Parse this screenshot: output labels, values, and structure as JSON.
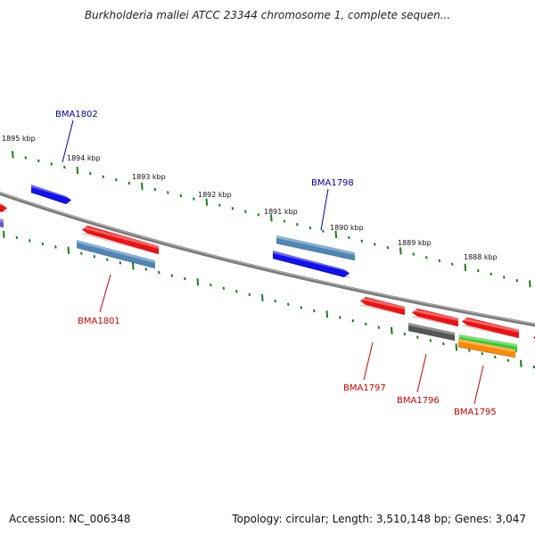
{
  "title": "Burkholderia mallei ATCC 23344 chromosome 1, complete sequen...",
  "footer": {
    "accession": "Accession: NC_006348",
    "summary": "Topology: circular; Length: 3,510,148 bp; Genes: 3,047"
  },
  "colors": {
    "backbone": "#7a7a7a",
    "tick": "#1e7a1e",
    "label_forward": "#0000aa",
    "label_reverse": "#cc0000",
    "red": "#ee1111",
    "blue": "#1111ee",
    "steel": "#4f86b8",
    "gray": "#555555",
    "green": "#33cc33",
    "orange": "#ff8800",
    "purple": "#6a5acd"
  },
  "ticks": [
    {
      "label": "1895 kbp"
    },
    {
      "label": "1894 kbp"
    },
    {
      "label": "1893 kbp"
    },
    {
      "label": "1892 kbp"
    },
    {
      "label": "1891 kbp"
    },
    {
      "label": "1890 kbp"
    },
    {
      "label": "1889 kbp"
    },
    {
      "label": "1888 kbp"
    }
  ],
  "gene_labels": [
    {
      "name": "BMA1802",
      "strand": "forward"
    },
    {
      "name": "BMA1798",
      "strand": "forward"
    },
    {
      "name": "BMA1801",
      "strand": "reverse"
    },
    {
      "name": "BMA1797",
      "strand": "reverse"
    },
    {
      "name": "BMA1796",
      "strand": "reverse"
    },
    {
      "name": "BMA1795",
      "strand": "reverse"
    }
  ]
}
